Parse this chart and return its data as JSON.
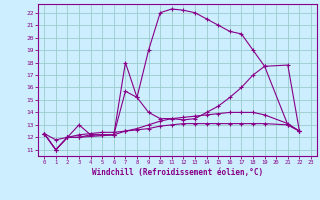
{
  "xlabel": "Windchill (Refroidissement éolien,°C)",
  "background_color": "#cceeff",
  "line_color": "#880088",
  "grid_color": "#99cccc",
  "xlim": [
    -0.5,
    23.5
  ],
  "ylim": [
    10.5,
    22.7
  ],
  "xticks": [
    0,
    1,
    2,
    3,
    4,
    5,
    6,
    7,
    8,
    9,
    10,
    11,
    12,
    13,
    14,
    15,
    16,
    17,
    18,
    19,
    20,
    21,
    22,
    23
  ],
  "yticks": [
    11,
    12,
    13,
    14,
    15,
    16,
    17,
    18,
    19,
    20,
    21,
    22
  ],
  "curves": [
    {
      "x": [
        0,
        1,
        2,
        3,
        4,
        5,
        6,
        7,
        8,
        9,
        10,
        11,
        12,
        13,
        14,
        15,
        16,
        17,
        18,
        19,
        21,
        22
      ],
      "y": [
        12.3,
        11.0,
        12.0,
        12.0,
        12.2,
        12.2,
        12.2,
        18.0,
        15.2,
        19.0,
        22.0,
        22.3,
        22.2,
        22.0,
        21.5,
        21.0,
        20.5,
        20.3,
        19.0,
        17.7,
        13.0,
        12.5
      ]
    },
    {
      "x": [
        0,
        1,
        2,
        3,
        6,
        7,
        8,
        9,
        10,
        11,
        12,
        13,
        14,
        15,
        16,
        17,
        18,
        19,
        21,
        22
      ],
      "y": [
        12.3,
        11.0,
        12.0,
        12.0,
        12.2,
        15.7,
        15.2,
        14.0,
        13.5,
        13.5,
        13.4,
        13.5,
        14.0,
        14.5,
        15.2,
        16.0,
        17.0,
        17.7,
        17.8,
        12.5
      ]
    },
    {
      "x": [
        0,
        1,
        2,
        3,
        4,
        5,
        6,
        7,
        8,
        9,
        10,
        11,
        12,
        13,
        14,
        15,
        16,
        17,
        18,
        19,
        21,
        22
      ],
      "y": [
        12.3,
        11.0,
        12.0,
        13.0,
        12.2,
        12.2,
        12.2,
        12.5,
        12.7,
        13.0,
        13.3,
        13.5,
        13.6,
        13.7,
        13.8,
        13.9,
        14.0,
        14.0,
        14.0,
        13.8,
        13.1,
        12.5
      ]
    },
    {
      "x": [
        0,
        1,
        2,
        3,
        4,
        5,
        6,
        7,
        8,
        9,
        10,
        11,
        12,
        13,
        14,
        15,
        16,
        17,
        18,
        19,
        21,
        22
      ],
      "y": [
        12.3,
        11.8,
        12.0,
        12.2,
        12.3,
        12.4,
        12.4,
        12.5,
        12.6,
        12.7,
        12.9,
        13.0,
        13.1,
        13.1,
        13.1,
        13.1,
        13.1,
        13.1,
        13.1,
        13.1,
        13.0,
        12.5
      ]
    }
  ]
}
